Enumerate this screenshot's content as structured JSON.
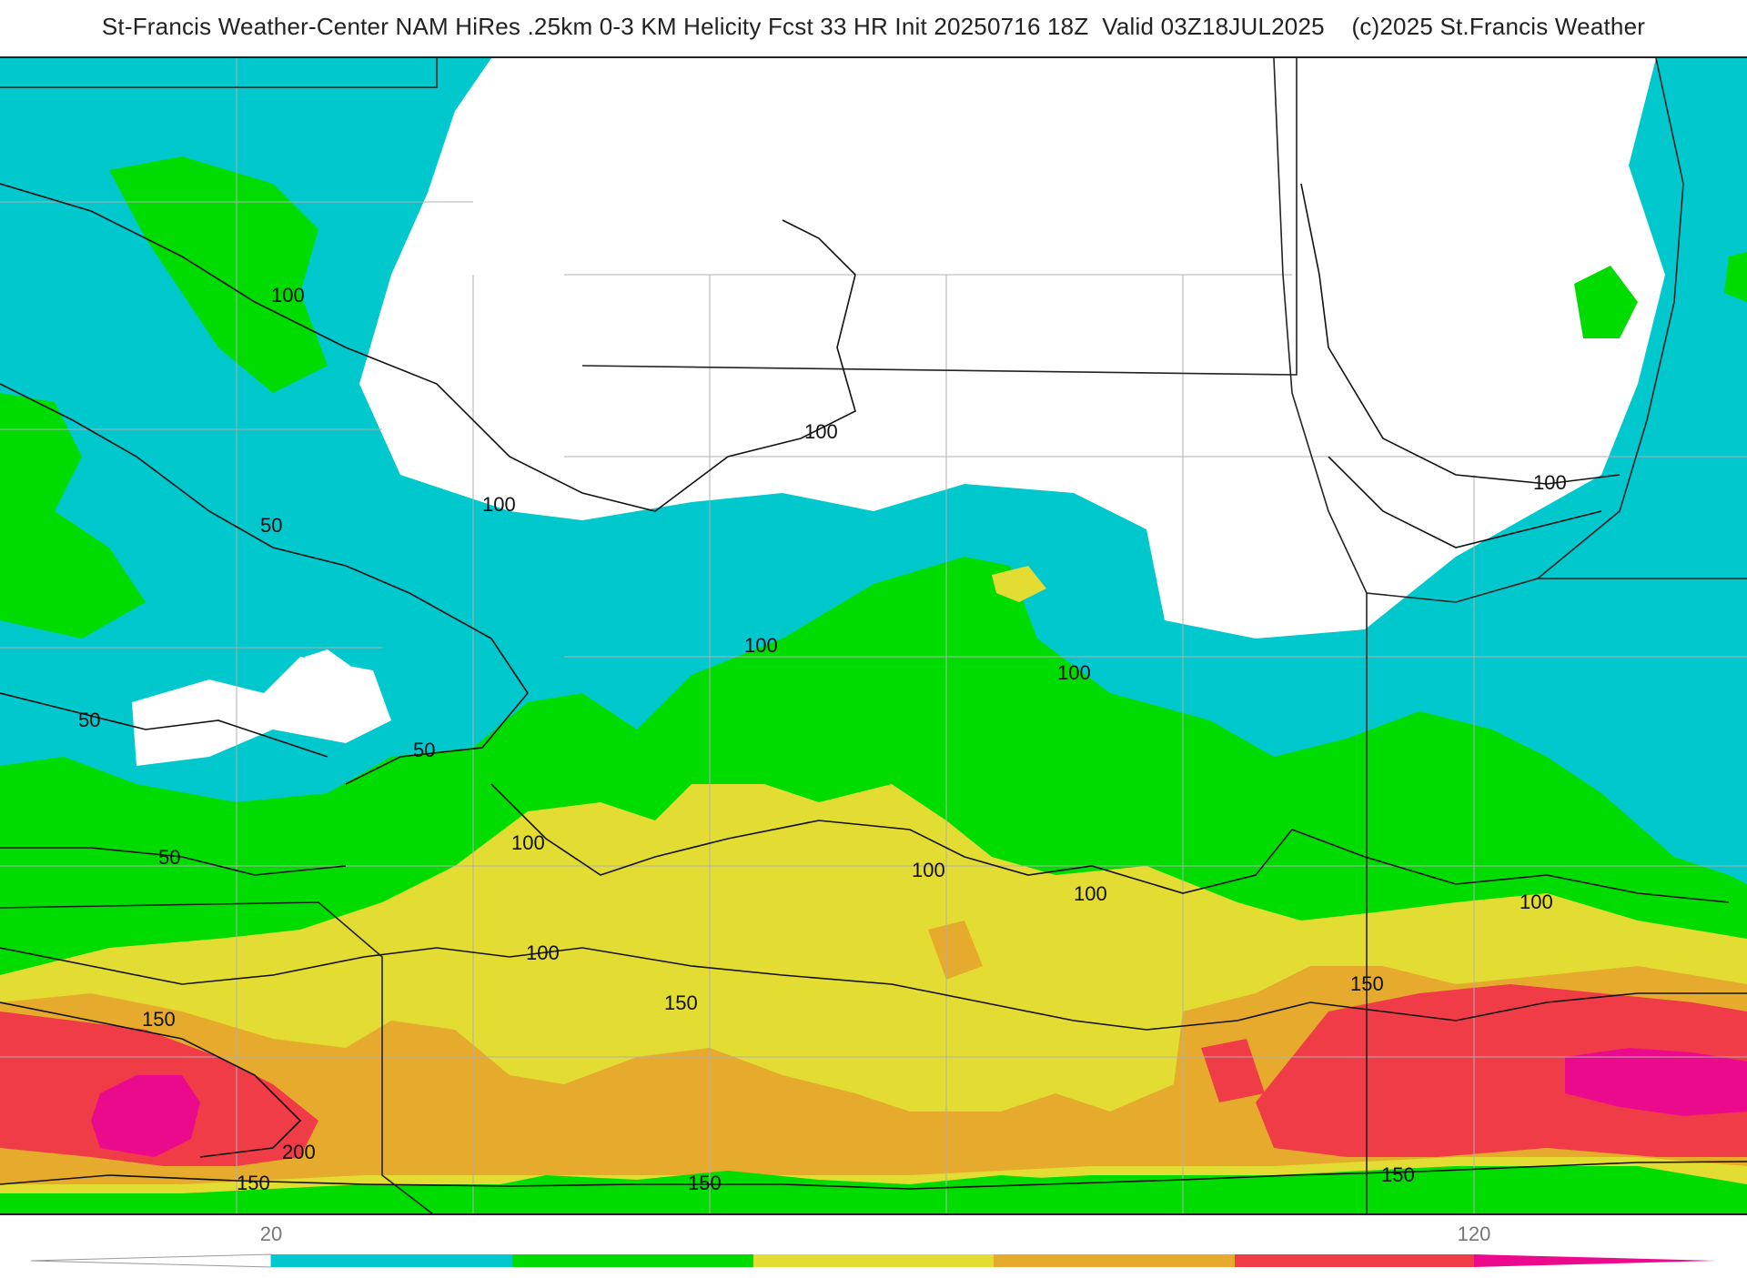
{
  "title": "St-Francis Weather-Center NAM HiRes .25km 0-3 KM Helicity Fcst 33 HR Init 20250716 18Z  Valid 03Z18JUL2025    (c)2025 St.Francis Weather",
  "colors": {
    "band_20_50": "#00c8cc",
    "band_50_80": "#00dc00",
    "band_80_110": "#e3dc32",
    "band_110_140": "#e6aa2d",
    "band_140_170": "#f03c46",
    "band_170_plus": "#ec0a8c",
    "contour": "#111111",
    "borders": "#9a9a9a"
  },
  "colorbar": {
    "tick_labels": [
      "20",
      "120"
    ],
    "bands": [
      "#00c8cc",
      "#00dc00",
      "#e3dc32",
      "#e6aa2d",
      "#f03c46",
      "#ec0a8c"
    ]
  },
  "contour_labels": {
    "l1": "100",
    "l2": "100",
    "l3": "100",
    "l4": "100",
    "l5": "50",
    "l6": "100",
    "l7": "100",
    "l8": "50",
    "l9": "50",
    "l10": "50",
    "l11": "100",
    "l12": "100",
    "l13": "100",
    "l14": "100",
    "l15": "100",
    "l16": "150",
    "l17": "150",
    "l18": "150",
    "l19": "200",
    "l20": "150",
    "l21": "150",
    "l22": "150"
  }
}
